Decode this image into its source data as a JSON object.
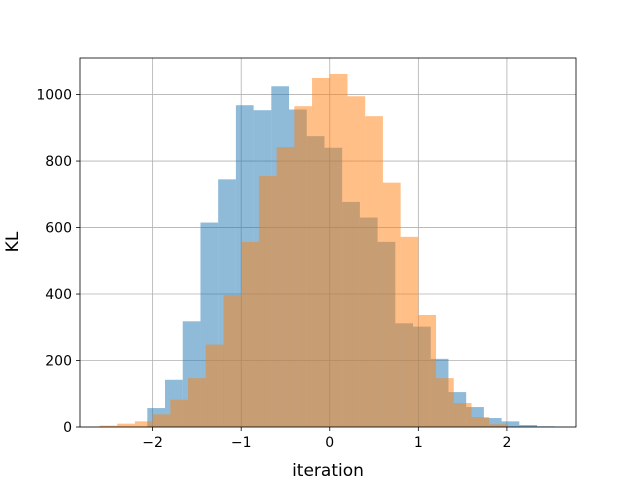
{
  "chart_data": {
    "type": "bar",
    "subtype": "overlapping-histogram",
    "title": "",
    "xlabel": "iteration",
    "ylabel": "KL",
    "xlim": [
      -2.82,
      2.78
    ],
    "ylim": [
      0,
      1110
    ],
    "xticks": [
      -2,
      -1,
      0,
      1,
      2
    ],
    "yticks": [
      0,
      200,
      400,
      600,
      800,
      1000
    ],
    "grid": true,
    "bin_width": 0.2,
    "series": [
      {
        "color": "#1f77b4",
        "opacity": 0.5,
        "bins": [
          {
            "x0": -2.06,
            "x1": -1.86,
            "count": 57
          },
          {
            "x0": -1.86,
            "x1": -1.66,
            "count": 142
          },
          {
            "x0": -1.66,
            "x1": -1.46,
            "count": 318
          },
          {
            "x0": -1.46,
            "x1": -1.26,
            "count": 615
          },
          {
            "x0": -1.26,
            "x1": -1.06,
            "count": 745
          },
          {
            "x0": -1.06,
            "x1": -0.86,
            "count": 968
          },
          {
            "x0": -0.86,
            "x1": -0.66,
            "count": 953
          },
          {
            "x0": -0.66,
            "x1": -0.46,
            "count": 1025
          },
          {
            "x0": -0.46,
            "x1": -0.26,
            "count": 955
          },
          {
            "x0": -0.26,
            "x1": -0.06,
            "count": 875
          },
          {
            "x0": -0.06,
            "x1": 0.14,
            "count": 840
          },
          {
            "x0": 0.14,
            "x1": 0.34,
            "count": 677
          },
          {
            "x0": 0.34,
            "x1": 0.54,
            "count": 630
          },
          {
            "x0": 0.54,
            "x1": 0.74,
            "count": 557
          },
          {
            "x0": 0.74,
            "x1": 0.94,
            "count": 312
          },
          {
            "x0": 0.94,
            "x1": 1.14,
            "count": 302
          },
          {
            "x0": 1.14,
            "x1": 1.34,
            "count": 205
          },
          {
            "x0": 1.34,
            "x1": 1.54,
            "count": 105
          },
          {
            "x0": 1.54,
            "x1": 1.74,
            "count": 60
          },
          {
            "x0": 1.74,
            "x1": 1.94,
            "count": 27
          },
          {
            "x0": 1.94,
            "x1": 2.14,
            "count": 17
          },
          {
            "x0": 2.14,
            "x1": 2.34,
            "count": 6
          },
          {
            "x0": 2.34,
            "x1": 2.54,
            "count": 2
          }
        ]
      },
      {
        "color": "#ff7f0e",
        "opacity": 0.5,
        "bins": [
          {
            "x0": -2.6,
            "x1": -2.4,
            "count": 4
          },
          {
            "x0": -2.4,
            "x1": -2.2,
            "count": 10
          },
          {
            "x0": -2.2,
            "x1": -2.0,
            "count": 17
          },
          {
            "x0": -2.0,
            "x1": -1.8,
            "count": 38
          },
          {
            "x0": -1.8,
            "x1": -1.6,
            "count": 82
          },
          {
            "x0": -1.6,
            "x1": -1.4,
            "count": 147
          },
          {
            "x0": -1.4,
            "x1": -1.2,
            "count": 248
          },
          {
            "x0": -1.2,
            "x1": -1.0,
            "count": 397
          },
          {
            "x0": -1.0,
            "x1": -0.8,
            "count": 557
          },
          {
            "x0": -0.8,
            "x1": -0.6,
            "count": 755
          },
          {
            "x0": -0.6,
            "x1": -0.4,
            "count": 842
          },
          {
            "x0": -0.4,
            "x1": -0.2,
            "count": 965
          },
          {
            "x0": -0.2,
            "x1": 0.0,
            "count": 1050
          },
          {
            "x0": 0.0,
            "x1": 0.2,
            "count": 1062
          },
          {
            "x0": 0.2,
            "x1": 0.4,
            "count": 995
          },
          {
            "x0": 0.4,
            "x1": 0.6,
            "count": 935
          },
          {
            "x0": 0.6,
            "x1": 0.8,
            "count": 735
          },
          {
            "x0": 0.8,
            "x1": 1.0,
            "count": 572
          },
          {
            "x0": 1.0,
            "x1": 1.2,
            "count": 337
          },
          {
            "x0": 1.2,
            "x1": 1.4,
            "count": 147
          },
          {
            "x0": 1.4,
            "x1": 1.6,
            "count": 72
          },
          {
            "x0": 1.6,
            "x1": 1.8,
            "count": 30
          },
          {
            "x0": 1.8,
            "x1": 2.0,
            "count": 8
          }
        ]
      }
    ]
  }
}
